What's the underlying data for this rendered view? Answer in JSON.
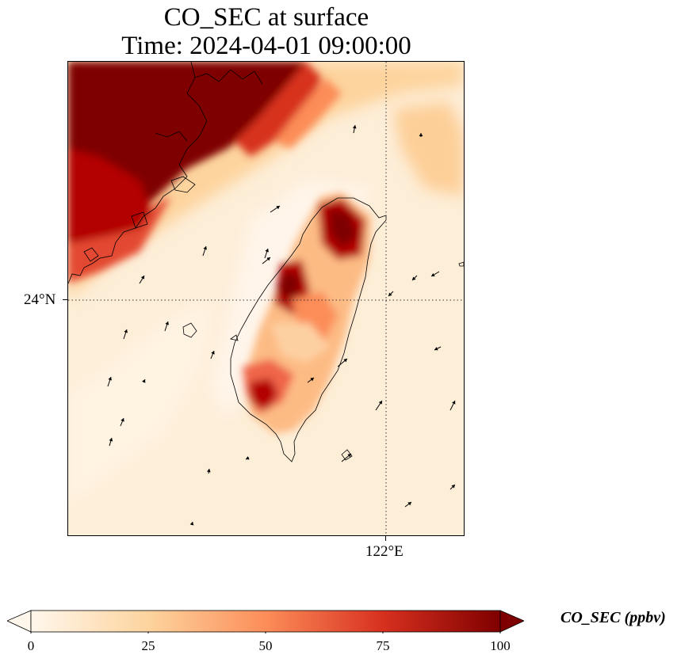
{
  "title": {
    "line1": "CO_SEC at surface",
    "line2": "Time: 2024-04-01 09:00:00"
  },
  "map": {
    "field": "CO_SEC",
    "colormap": "OrRd",
    "lat_gridline": "24°N",
    "lon_gridline": "122°E",
    "features": [
      "coastline",
      "wind-vectors",
      "graticule"
    ]
  },
  "colorbar": {
    "label": "CO_SEC (ppbv)",
    "ticks": [
      "0",
      "25",
      "50",
      "75",
      "100"
    ],
    "min": 0,
    "max": 100,
    "colors": [
      "#fff7ec",
      "#fdd49e",
      "#fc8d59",
      "#d7301f",
      "#7f0000"
    ],
    "extend": "both"
  }
}
